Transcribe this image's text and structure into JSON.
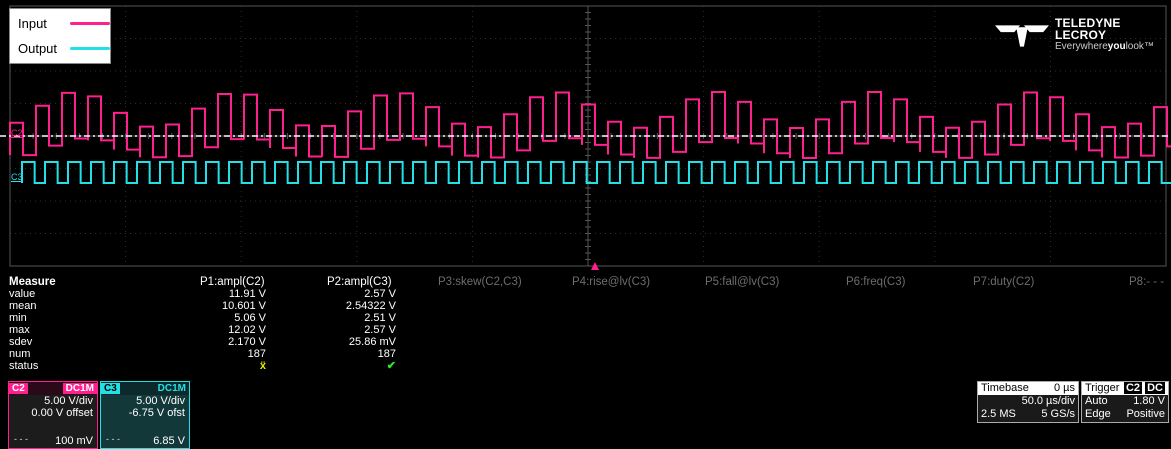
{
  "legend": {
    "items": [
      {
        "label": "Input",
        "color": "#ff1f8e"
      },
      {
        "label": "Output",
        "color": "#22e0e6"
      }
    ]
  },
  "brand": {
    "name": "TELEDYNE LECROY",
    "tagline_pre": "Everywhere",
    "tagline_bold": "you",
    "tagline_post": "look"
  },
  "channel_markers": {
    "c2": "C2",
    "c3": "C3"
  },
  "colors": {
    "c2": "#ff1f8e",
    "c3": "#22e0e6",
    "grid": "#3a3a3a",
    "dim": "#6d6d6d"
  },
  "measure": {
    "title": "Measure",
    "row_labels": [
      "value",
      "mean",
      "min",
      "max",
      "sdev",
      "num",
      "status"
    ],
    "params": [
      {
        "name": "P1:ampl(C2)",
        "values": [
          "11.91 V",
          "10.601 V",
          "5.06 V",
          "12.02 V",
          "2.170 V",
          "187"
        ],
        "status": "ẍ",
        "active": true
      },
      {
        "name": "P2:ampl(C3)",
        "values": [
          "2.57 V",
          "2.54322 V",
          "2.51 V",
          "2.57 V",
          "25.86 mV",
          "187"
        ],
        "status": "✔",
        "active": true
      },
      {
        "name": "P3:skew(C2,C3)",
        "active": false
      },
      {
        "name": "P4:rise@lv(C3)",
        "active": false
      },
      {
        "name": "P5:fall@lv(C3)",
        "active": false
      },
      {
        "name": "P6:freq(C3)",
        "active": false
      },
      {
        "name": "P7:duty(C2)",
        "active": false
      },
      {
        "name": "P8:- - -",
        "active": false
      }
    ]
  },
  "channels": [
    {
      "tag": "C2",
      "coupling": "DC1M",
      "vdiv": "5.00 V/div",
      "offset": "0.00 V offset",
      "bottom": "100 mV",
      "color": "#ff1f8e"
    },
    {
      "tag": "C3",
      "coupling": "DC1M",
      "vdiv": "5.00 V/div",
      "offset": "-6.75 V ofst",
      "bottom": "6.85 V",
      "color": "#22e0e6"
    }
  ],
  "timebase": {
    "label": "Timebase",
    "delay": "0 µs",
    "tdiv": "50.0 µs/div",
    "samples": "2.5 MS",
    "rate": "5 GS/s"
  },
  "trigger": {
    "label": "Trigger",
    "channel": "C2",
    "coupling": "DC",
    "mode": "Auto",
    "level": "1.80 V",
    "type": "Edge",
    "slope": "Positive"
  }
}
